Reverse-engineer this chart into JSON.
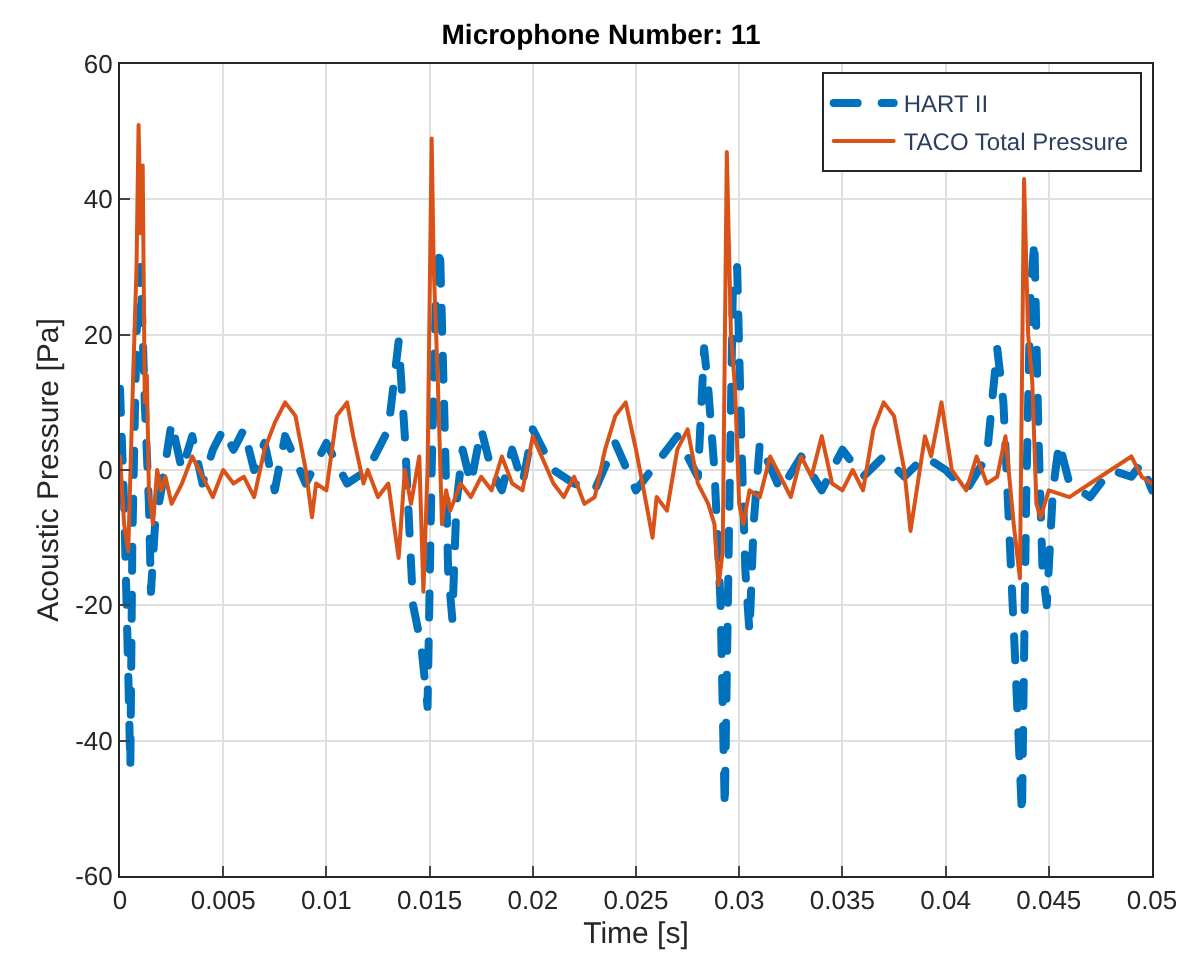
{
  "chart_data": {
    "type": "line",
    "title": "Microphone Number: 11",
    "xlabel": "Time [s]",
    "ylabel": "Acoustic Pressure [Pa]",
    "xlim": [
      0,
      0.05
    ],
    "xticks": [
      0,
      0.005,
      0.01,
      0.015,
      0.02,
      0.025,
      0.03,
      0.035,
      0.04,
      0.045,
      0.05
    ],
    "ylim": [
      -60,
      60
    ],
    "yticks": [
      -60,
      -40,
      -20,
      0,
      20,
      40,
      60
    ],
    "grid": true,
    "legend": "top right",
    "marker": "none",
    "series": [
      {
        "name": "HART II",
        "color": "#0072bd",
        "line_style": "dashed",
        "x": [
          0,
          0.0002,
          0.0004,
          0.0005,
          0.0006,
          0.0008,
          0.001,
          0.0012,
          0.0014,
          0.0015,
          0.0017,
          0.002,
          0.0025,
          0.003,
          0.0035,
          0.004,
          0.0045,
          0.005,
          0.0055,
          0.006,
          0.0065,
          0.007,
          0.0075,
          0.008,
          0.009,
          0.01,
          0.011,
          0.012,
          0.013,
          0.0135,
          0.0138,
          0.0142,
          0.0146,
          0.0149,
          0.0151,
          0.0153,
          0.0155,
          0.0157,
          0.0159,
          0.0161,
          0.0163,
          0.0166,
          0.017,
          0.0175,
          0.018,
          0.0185,
          0.019,
          0.0195,
          0.02,
          0.021,
          0.022,
          0.023,
          0.024,
          0.025,
          0.026,
          0.027,
          0.028,
          0.0283,
          0.0285,
          0.0288,
          0.0291,
          0.0293,
          0.0295,
          0.0297,
          0.0299,
          0.0301,
          0.0303,
          0.0305,
          0.0307,
          0.031,
          0.032,
          0.033,
          0.034,
          0.035,
          0.036,
          0.037,
          0.038,
          0.039,
          0.04,
          0.041,
          0.042,
          0.0425,
          0.0428,
          0.0431,
          0.0434,
          0.0437,
          0.0439,
          0.0441,
          0.0443,
          0.0445,
          0.0447,
          0.0449,
          0.0452,
          0.0455,
          0.046,
          0.047,
          0.048,
          0.049,
          0.0495,
          0.05
        ],
        "values": [
          12,
          -5,
          -30,
          -44,
          -10,
          20,
          30,
          10,
          -5,
          -18,
          -8,
          -3,
          7,
          0,
          5,
          -2,
          3,
          6,
          3,
          6,
          0,
          4,
          -3,
          5,
          -2,
          4,
          -2,
          0,
          6,
          19,
          5,
          -20,
          -26,
          -35,
          0,
          25,
          33,
          10,
          -15,
          -22,
          -5,
          3,
          -2,
          6,
          0,
          -3,
          3,
          -2,
          6,
          0,
          -2,
          -3,
          4,
          -3,
          1,
          5,
          -1,
          18,
          12,
          0,
          -20,
          -50,
          -10,
          28,
          30,
          5,
          -15,
          -24,
          -8,
          4,
          -3,
          2,
          -3,
          3,
          -1,
          2,
          -1,
          2,
          0,
          -3,
          2,
          18,
          10,
          -10,
          -30,
          -51,
          -5,
          25,
          34,
          5,
          -15,
          -20,
          -3,
          4,
          -2,
          -4,
          0,
          -1,
          1,
          -3
        ]
      },
      {
        "name": "TACO Total Pressure",
        "color": "#d95319",
        "line_style": "solid",
        "x": [
          0,
          0.0002,
          0.0004,
          0.0006,
          0.0008,
          0.0009,
          0.001,
          0.0011,
          0.0012,
          0.0013,
          0.0014,
          0.0016,
          0.0018,
          0.002,
          0.0022,
          0.0025,
          0.003,
          0.0035,
          0.004,
          0.0045,
          0.005,
          0.0055,
          0.006,
          0.0065,
          0.007,
          0.0075,
          0.008,
          0.0085,
          0.009,
          0.0093,
          0.0095,
          0.01,
          0.0105,
          0.011,
          0.0113,
          0.0118,
          0.012,
          0.0125,
          0.013,
          0.0135,
          0.0138,
          0.0141,
          0.0145,
          0.0147,
          0.0149,
          0.0151,
          0.0152,
          0.0154,
          0.0156,
          0.0158,
          0.016,
          0.0165,
          0.017,
          0.0175,
          0.018,
          0.0185,
          0.019,
          0.0195,
          0.02,
          0.021,
          0.0215,
          0.022,
          0.0225,
          0.023,
          0.0235,
          0.024,
          0.0245,
          0.025,
          0.0255,
          0.0258,
          0.026,
          0.0265,
          0.027,
          0.0275,
          0.028,
          0.0285,
          0.0288,
          0.029,
          0.0292,
          0.0294,
          0.0296,
          0.0298,
          0.03,
          0.0302,
          0.0305,
          0.031,
          0.0315,
          0.032,
          0.0325,
          0.033,
          0.0335,
          0.034,
          0.0345,
          0.035,
          0.0355,
          0.036,
          0.0365,
          0.037,
          0.0375,
          0.038,
          0.0383,
          0.0387,
          0.039,
          0.0393,
          0.0398,
          0.04,
          0.0403,
          0.041,
          0.0415,
          0.042,
          0.0425,
          0.0429,
          0.0433,
          0.0436,
          0.0438,
          0.044,
          0.0442,
          0.0444,
          0.0446,
          0.045,
          0.046,
          0.047,
          0.048,
          0.049,
          0.0495,
          0.05
        ],
        "values": [
          2,
          -8,
          -12,
          10,
          30,
          51,
          35,
          45,
          10,
          14,
          -3,
          -8,
          0,
          -3,
          -1,
          -5,
          -2,
          2,
          -1,
          -4,
          0,
          -2,
          -1,
          -4,
          3,
          7,
          10,
          8,
          0,
          -7,
          -2,
          -3,
          8,
          10,
          5,
          -2,
          0,
          -4,
          -2,
          -13,
          0,
          -5,
          2,
          -18,
          0,
          49,
          30,
          13,
          -8,
          -3,
          -6,
          -2,
          -4,
          -1,
          -3,
          2,
          -2,
          -3,
          5,
          -2,
          -4,
          -1,
          -5,
          -4,
          3,
          8,
          10,
          3,
          -5,
          -10,
          -4,
          -6,
          3,
          6,
          -2,
          -5,
          -8,
          -17,
          -12,
          47,
          20,
          12,
          -5,
          -8,
          -3,
          -4,
          2,
          -1,
          -4,
          2,
          -1,
          5,
          -2,
          -3,
          0,
          -3,
          6,
          10,
          8,
          0,
          -9,
          -1,
          5,
          2,
          10,
          6,
          0,
          -3,
          2,
          -2,
          -1,
          5,
          -8,
          -16,
          43,
          20,
          13,
          -5,
          -7,
          -3,
          -4,
          -2,
          0,
          2,
          -1,
          -2
        ]
      }
    ]
  }
}
